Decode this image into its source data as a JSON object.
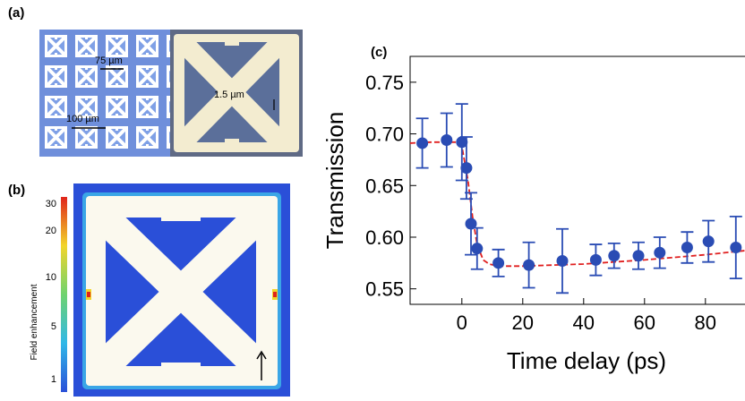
{
  "panels": {
    "a": {
      "label": "(a)",
      "scale_75": "75 µm",
      "scale_100": "100 µm",
      "scale_gap": "1.5 µm"
    },
    "b": {
      "label": "(b)",
      "colorbar_title": "Field enhancement",
      "colorbar_ticks": [
        "30",
        "20",
        "10",
        "5",
        "1"
      ],
      "colors": {
        "background": "#2a4fd8",
        "metal": "#fbf9ee",
        "hot": "#e0241b",
        "warm": "#f2d52a"
      }
    },
    "c": {
      "label": "(c)"
    }
  },
  "chart_data": {
    "type": "scatter",
    "xlabel": "Time delay (ps)",
    "ylabel": "Transmission",
    "xlim": [
      -17,
      93
    ],
    "ylim": [
      0.535,
      0.775
    ],
    "xticks": [
      "0",
      "20",
      "40",
      "60",
      "80"
    ],
    "yticks": [
      "0.55",
      "0.60",
      "0.65",
      "0.70",
      "0.75"
    ],
    "series": [
      {
        "points": [
          {
            "x": -13,
            "y": 0.691,
            "err": 0.024
          },
          {
            "x": -5,
            "y": 0.694,
            "err": 0.026
          },
          {
            "x": 0,
            "y": 0.692,
            "err": 0.037
          },
          {
            "x": 1.5,
            "y": 0.667,
            "err": 0.03
          },
          {
            "x": 3,
            "y": 0.613,
            "err": 0.03
          },
          {
            "x": 5,
            "y": 0.589,
            "err": 0.02
          },
          {
            "x": 12,
            "y": 0.575,
            "err": 0.013
          },
          {
            "x": 22,
            "y": 0.573,
            "err": 0.022
          },
          {
            "x": 33,
            "y": 0.577,
            "err": 0.031
          },
          {
            "x": 44,
            "y": 0.578,
            "err": 0.015
          },
          {
            "x": 50,
            "y": 0.582,
            "err": 0.012
          },
          {
            "x": 58,
            "y": 0.582,
            "err": 0.013
          },
          {
            "x": 65,
            "y": 0.585,
            "err": 0.015
          },
          {
            "x": 74,
            "y": 0.59,
            "err": 0.015
          },
          {
            "x": 81,
            "y": 0.596,
            "err": 0.02
          },
          {
            "x": 90,
            "y": 0.59,
            "err": 0.03
          }
        ]
      }
    ],
    "fit": {
      "x": [
        -17,
        -10,
        -2,
        0,
        2,
        3.5,
        5,
        7,
        9,
        12,
        20,
        40,
        60,
        80,
        93
      ],
      "y": [
        0.691,
        0.692,
        0.692,
        0.688,
        0.655,
        0.62,
        0.593,
        0.578,
        0.574,
        0.572,
        0.572,
        0.574,
        0.578,
        0.583,
        0.587
      ]
    },
    "colors": {
      "marker": "#2a4cb4",
      "errorbar": "#2a4cb4",
      "fit": "#e02020"
    }
  }
}
